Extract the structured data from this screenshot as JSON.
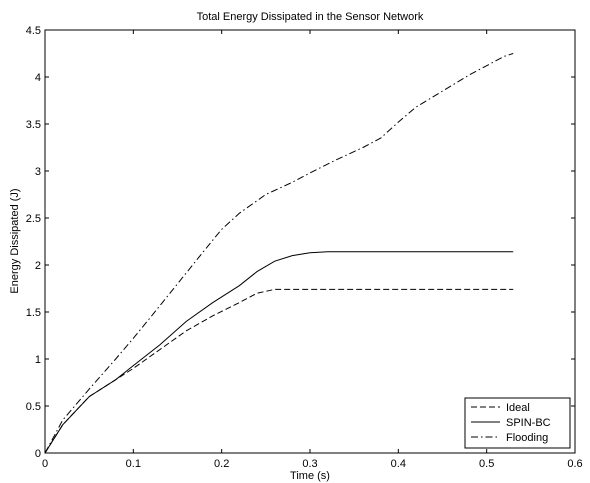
{
  "chart_data": {
    "type": "line",
    "title": "Total Energy Dissipated in the Sensor Network",
    "xlabel": "Time (s)",
    "ylabel": "Energy Dissipated (J)",
    "xlim": [
      0,
      0.6
    ],
    "ylim": [
      0,
      4.5
    ],
    "xticks": [
      0,
      0.1,
      0.2,
      0.3,
      0.4,
      0.5,
      0.6
    ],
    "xtick_labels": [
      "0",
      "0.1",
      "0.2",
      "0.3",
      "0.4",
      "0.5",
      "0.6"
    ],
    "yticks": [
      0,
      0.5,
      1,
      1.5,
      2,
      2.5,
      3,
      3.5,
      4,
      4.5
    ],
    "ytick_labels": [
      "0",
      "0.5",
      "1",
      "1.5",
      "2",
      "2.5",
      "3",
      "3.5",
      "4",
      "4.5"
    ],
    "grid": false,
    "legend_position": "bottom-right",
    "series": [
      {
        "name": "Ideal",
        "dash": "dashed",
        "x": [
          0,
          0.02,
          0.05,
          0.08,
          0.1,
          0.13,
          0.16,
          0.19,
          0.22,
          0.24,
          0.26,
          0.3,
          0.35,
          0.4,
          0.45,
          0.5,
          0.53
        ],
        "y": [
          0,
          0.3,
          0.6,
          0.78,
          0.9,
          1.1,
          1.3,
          1.46,
          1.6,
          1.7,
          1.74,
          1.74,
          1.74,
          1.74,
          1.74,
          1.74,
          1.74
        ]
      },
      {
        "name": "SPIN-BC",
        "dash": "solid",
        "x": [
          0,
          0.02,
          0.05,
          0.08,
          0.1,
          0.13,
          0.16,
          0.19,
          0.22,
          0.24,
          0.26,
          0.28,
          0.3,
          0.32,
          0.35,
          0.4,
          0.45,
          0.5,
          0.53
        ],
        "y": [
          0,
          0.3,
          0.6,
          0.78,
          0.93,
          1.15,
          1.4,
          1.6,
          1.78,
          1.93,
          2.04,
          2.1,
          2.13,
          2.14,
          2.14,
          2.14,
          2.14,
          2.14,
          2.14
        ]
      },
      {
        "name": "Flooding",
        "dash": "dashdot",
        "x": [
          0,
          0.02,
          0.05,
          0.08,
          0.1,
          0.12,
          0.15,
          0.18,
          0.2,
          0.22,
          0.25,
          0.28,
          0.3,
          0.33,
          0.36,
          0.38,
          0.4,
          0.42,
          0.45,
          0.48,
          0.5,
          0.52,
          0.53
        ],
        "y": [
          0,
          0.35,
          0.68,
          1.0,
          1.22,
          1.45,
          1.8,
          2.15,
          2.38,
          2.55,
          2.75,
          2.88,
          2.98,
          3.12,
          3.25,
          3.35,
          3.52,
          3.68,
          3.85,
          4.02,
          4.12,
          4.22,
          4.25
        ]
      }
    ]
  }
}
